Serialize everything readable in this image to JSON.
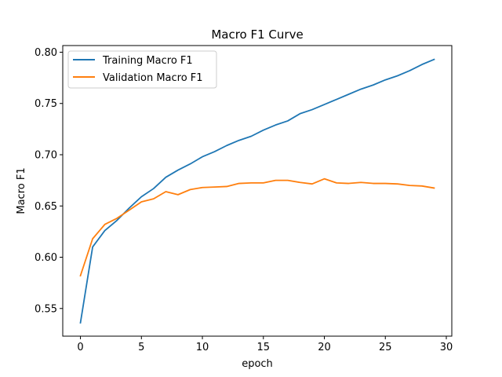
{
  "chart_data": {
    "type": "line",
    "title": "Macro F1 Curve",
    "xlabel": "epoch",
    "ylabel": "Macro F1",
    "xlim": [
      -1.45,
      30.45
    ],
    "ylim": [
      0.523,
      0.8065
    ],
    "xticks": [
      0,
      5,
      10,
      15,
      20,
      25,
      30
    ],
    "xtick_labels": [
      "0",
      "5",
      "10",
      "15",
      "20",
      "25",
      "30"
    ],
    "yticks": [
      0.55,
      0.6,
      0.65,
      0.7,
      0.75,
      0.8
    ],
    "ytick_labels": [
      "0.55",
      "0.60",
      "0.65",
      "0.70",
      "0.75",
      "0.80"
    ],
    "grid": false,
    "legend_position": "top-left",
    "x": [
      0,
      1,
      2,
      3,
      4,
      5,
      6,
      7,
      8,
      9,
      10,
      11,
      12,
      13,
      14,
      15,
      16,
      17,
      18,
      19,
      20,
      21,
      22,
      23,
      24,
      25,
      26,
      27,
      28,
      29
    ],
    "series": [
      {
        "name": "Training Macro F1",
        "color": "#1f77b4",
        "values": [
          0.536,
          0.61,
          0.626,
          0.636,
          0.648,
          0.659,
          0.667,
          0.678,
          0.685,
          0.691,
          0.698,
          0.703,
          0.709,
          0.714,
          0.718,
          0.724,
          0.729,
          0.733,
          0.74,
          0.744,
          0.749,
          0.754,
          0.759,
          0.764,
          0.768,
          0.773,
          0.777,
          0.782,
          0.788,
          0.793
        ]
      },
      {
        "name": "Validation Macro F1",
        "color": "#ff7f0e",
        "values": [
          0.582,
          0.618,
          0.632,
          0.638,
          0.646,
          0.654,
          0.657,
          0.664,
          0.661,
          0.666,
          0.668,
          0.6685,
          0.669,
          0.672,
          0.6725,
          0.6725,
          0.675,
          0.675,
          0.673,
          0.6715,
          0.6765,
          0.6725,
          0.672,
          0.673,
          0.672,
          0.672,
          0.6715,
          0.67,
          0.6695,
          0.6675
        ]
      }
    ]
  }
}
